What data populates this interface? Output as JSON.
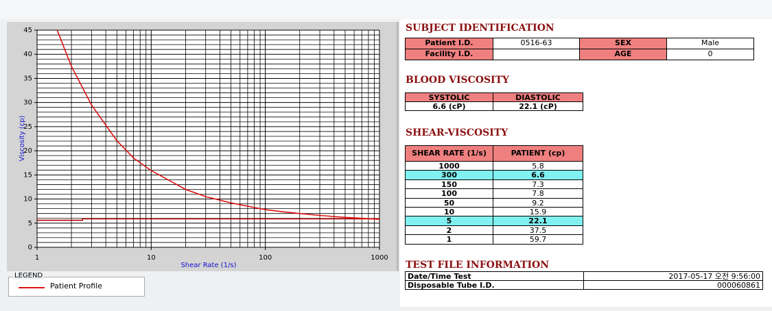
{
  "chart_data": {
    "type": "line",
    "xlabel": "Shear Rate (1/s)",
    "ylabel": "Viscosity (cp)",
    "xlog": true,
    "grid": true,
    "xlim": [
      1,
      1000
    ],
    "xticks": [
      1,
      10,
      100,
      1000
    ],
    "xminor": [
      2,
      3,
      4,
      5,
      6,
      7,
      8,
      9,
      20,
      30,
      40,
      50,
      60,
      70,
      80,
      90,
      200,
      300,
      400,
      500,
      600,
      700,
      800,
      900
    ],
    "ylim": [
      0,
      45
    ],
    "yticks": [
      0,
      5,
      10,
      15,
      20,
      25,
      30,
      35,
      40,
      45
    ],
    "yminor": [
      1,
      2,
      3,
      4,
      6,
      7,
      8,
      9,
      11,
      12,
      13,
      14,
      16,
      17,
      18,
      19,
      21,
      22,
      23,
      24,
      26,
      27,
      28,
      29,
      31,
      32,
      33,
      34,
      36,
      37,
      38,
      39,
      41,
      42,
      43,
      44
    ],
    "legend_title": "LEGEND",
    "series": [
      {
        "name": "Patient Profile",
        "color": "#e01010",
        "x": [
          1.5,
          2,
          3,
          5,
          7,
          10,
          20,
          30,
          50,
          100,
          150,
          200,
          300,
          500,
          1000
        ],
        "values": [
          45,
          37.5,
          29.5,
          22.1,
          18.5,
          15.9,
          12,
          10.5,
          9.2,
          7.8,
          7.3,
          7,
          6.6,
          6.2,
          5.8
        ]
      },
      {
        "color": "#b00000",
        "x": [
          1,
          2.5,
          2.5,
          1000
        ],
        "values": [
          5.6,
          5.6,
          5.9,
          5.9
        ]
      }
    ]
  },
  "subject": {
    "title": "SUBJECT IDENTIFICATION",
    "fields": [
      {
        "label": "Patient I.D.",
        "value": "0516-63"
      },
      {
        "label": "Facility I.D."
      },
      {
        "label": "SEX",
        "value": "Male"
      },
      {
        "label": "AGE",
        "value": "0"
      }
    ]
  },
  "blood": {
    "title": "BLOOD VISCOSITY",
    "headers": [
      "SYSTOLIC",
      "DIASTOLIC"
    ],
    "values": [
      "6.6 (cP)",
      "22.1 (cP)"
    ]
  },
  "shear": {
    "title": "SHEAR-VISCOSITY",
    "headers": [
      "SHEAR RATE (1/s)",
      "PATIENT (cp)"
    ],
    "rows": [
      [
        1000,
        5.8
      ],
      [
        300,
        6.6
      ],
      [
        150,
        7.3
      ],
      [
        100,
        7.8
      ],
      [
        50,
        9.2
      ],
      [
        10,
        15.9
      ],
      [
        5,
        22.1
      ],
      [
        2,
        37.5
      ],
      [
        1,
        59.7
      ]
    ],
    "highlight": [
      1,
      6
    ]
  },
  "testfile": {
    "title": "TEST FILE INFORMATION",
    "rows": [
      [
        "Date/Time Test",
        "2017-05-17  오전 9:56:00"
      ],
      [
        "Disposable Tube I.D.",
        "000060861"
      ]
    ]
  }
}
